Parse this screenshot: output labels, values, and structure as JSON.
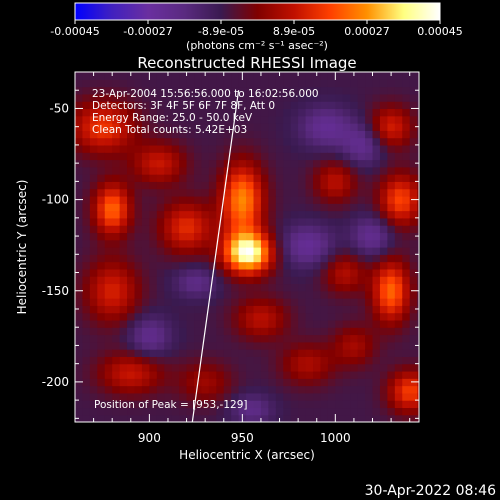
{
  "chart_data": {
    "type": "heatmap",
    "title": "Reconstructed RHESSI Image",
    "xlabel": "Heliocentric X (arcsec)",
    "ylabel": "Heliocentric Y (arcsec)",
    "xlim": [
      860,
      1045
    ],
    "ylim": [
      -222,
      -30
    ],
    "xticks": [
      900,
      950,
      1000
    ],
    "yticks": [
      -50,
      -100,
      -150,
      -200
    ],
    "annotations": {
      "line1": "23-Apr-2004 15:56:56.000 to 16:02:56.000",
      "line2": "Detectors: 3F 4F 5F 6F 7F 8F, Att 0",
      "line3": "Energy Range: 25.0 - 50.0 keV",
      "line4": "Clean    Total counts: 5.42E+03",
      "peak": "Position of Peak = [953,-129]"
    },
    "peak": [
      953,
      -129
    ],
    "limb_line": [
      [
        922,
        -230
      ],
      [
        948,
        -40
      ]
    ],
    "colorbar": {
      "min": -0.00045,
      "max": 0.00045,
      "ticks": [
        "-0.00045",
        "-0.00027",
        "-8.9e-05",
        "8.9e-05",
        "0.00027",
        "0.00045"
      ],
      "units_label": "(photons cm⁻² s⁻¹ asec⁻²)",
      "colors": [
        "#0000ff",
        "#4020c0",
        "#6a2fa0",
        "#5a2a80",
        "#3a1a50",
        "#800000",
        "#c01000",
        "#ff4000",
        "#ff9000",
        "#ffff80",
        "#ffffff"
      ]
    },
    "blobs": [
      {
        "x": 953,
        "y": -129,
        "amp": 0.0005,
        "sx": 9,
        "sy": 8
      },
      {
        "x": 950,
        "y": -100,
        "amp": 0.00034,
        "sx": 8,
        "sy": 14
      },
      {
        "x": 920,
        "y": -115,
        "amp": 0.00022,
        "sx": 10,
        "sy": 10
      },
      {
        "x": 880,
        "y": -105,
        "amp": 0.0003,
        "sx": 7,
        "sy": 10
      },
      {
        "x": 875,
        "y": -60,
        "amp": 0.00024,
        "sx": 12,
        "sy": 10
      },
      {
        "x": 880,
        "y": -150,
        "amp": 0.0002,
        "sx": 10,
        "sy": 12
      },
      {
        "x": 905,
        "y": -80,
        "amp": 0.00018,
        "sx": 10,
        "sy": 8
      },
      {
        "x": 960,
        "y": -165,
        "amp": 0.00016,
        "sx": 10,
        "sy": 8
      },
      {
        "x": 1030,
        "y": -150,
        "amp": 0.0003,
        "sx": 7,
        "sy": 12
      },
      {
        "x": 1035,
        "y": -100,
        "amp": 0.00026,
        "sx": 8,
        "sy": 10
      },
      {
        "x": 1030,
        "y": -60,
        "amp": 0.0002,
        "sx": 8,
        "sy": 8
      },
      {
        "x": 1040,
        "y": -205,
        "amp": 0.00025,
        "sx": 8,
        "sy": 8
      },
      {
        "x": 1000,
        "y": -90,
        "amp": 0.00016,
        "sx": 8,
        "sy": 8
      },
      {
        "x": 1005,
        "y": -140,
        "amp": 0.00015,
        "sx": 8,
        "sy": 8
      },
      {
        "x": 890,
        "y": -195,
        "amp": 0.00018,
        "sx": 12,
        "sy": 8
      },
      {
        "x": 930,
        "y": -200,
        "amp": 0.00012,
        "sx": 10,
        "sy": 8
      },
      {
        "x": 985,
        "y": -190,
        "amp": 0.00014,
        "sx": 10,
        "sy": 8
      },
      {
        "x": 1010,
        "y": -180,
        "amp": 0.00013,
        "sx": 8,
        "sy": 8
      },
      {
        "x": 985,
        "y": -125,
        "amp": -0.00016,
        "sx": 10,
        "sy": 8
      },
      {
        "x": 1015,
        "y": -70,
        "amp": -0.00014,
        "sx": 8,
        "sy": 8
      },
      {
        "x": 1020,
        "y": -120,
        "amp": -0.00015,
        "sx": 8,
        "sy": 8
      },
      {
        "x": 900,
        "y": -175,
        "amp": -0.00014,
        "sx": 8,
        "sy": 8
      },
      {
        "x": 995,
        "y": -60,
        "amp": -0.00015,
        "sx": 10,
        "sy": 8
      },
      {
        "x": 925,
        "y": -145,
        "amp": -0.00012,
        "sx": 8,
        "sy": 6
      },
      {
        "x": 955,
        "y": -215,
        "amp": -0.00012,
        "sx": 8,
        "sy": 6
      }
    ]
  },
  "footer": {
    "timestamp": "30-Apr-2022 08:46"
  }
}
